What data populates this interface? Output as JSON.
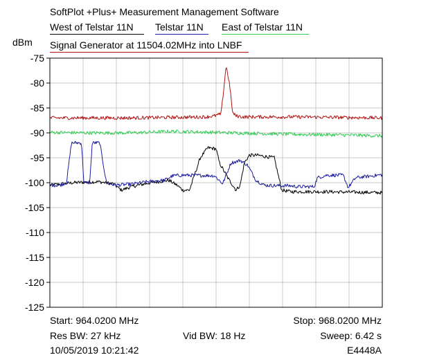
{
  "header": {
    "title": "SoftPlot +Plus+ Measurement Management Software"
  },
  "legend": [
    {
      "label": "West of Telstar 11N",
      "color": "#000000"
    },
    {
      "label": "Telstar 11N",
      "color": "#1a1aa0"
    },
    {
      "label": "East of Telstar 11N",
      "color": "#33cc55"
    },
    {
      "label": "Signal Generator at 11504.02MHz into LNBF",
      "color": "#b01010"
    }
  ],
  "footer": {
    "start": "Start: 964.0200 MHz",
    "stop": "Stop: 968.0200 MHz",
    "res_bw": "Res BW: 27 kHz",
    "vid_bw": "Vid BW: 18 Hz",
    "sweep": "Sweep: 6.42 s",
    "timestamp": "10/05/2019 10:21:42",
    "instrument": "E4448A"
  },
  "chart_data": {
    "type": "line",
    "ylabel": "dBm",
    "x_unit": "MHz",
    "xlim": [
      964.02,
      968.02
    ],
    "ylim": [
      -125,
      -75
    ],
    "yticks": [
      -75,
      -80,
      -85,
      -90,
      -95,
      -100,
      -105,
      -110,
      -115,
      -120,
      -125
    ],
    "x_divisions": 10,
    "grid": true,
    "series": [
      {
        "name": "West of Telstar 11N",
        "color": "#000000",
        "x": [
          964.02,
          964.3,
          964.6,
          964.78,
          964.88,
          965.0,
          965.2,
          965.45,
          965.55,
          965.62,
          965.7,
          965.83,
          965.92,
          966.02,
          966.06,
          966.16,
          966.26,
          966.31,
          966.36,
          966.42,
          966.52,
          966.72,
          966.81,
          966.92,
          967.3,
          968.02
        ],
        "y": [
          -100.5,
          -100.0,
          -99.8,
          -100.2,
          -101.5,
          -100.8,
          -100.1,
          -99.5,
          -100.5,
          -101.5,
          -101.5,
          -95.0,
          -93.0,
          -93.2,
          -96.0,
          -99.0,
          -101.5,
          -100.5,
          -96.0,
          -94.5,
          -94.5,
          -95.0,
          -101.5,
          -101.8,
          -101.8,
          -102.0
        ]
      },
      {
        "name": "Telstar 11N",
        "color": "#1a1aa0",
        "x": [
          964.02,
          964.14,
          964.22,
          964.28,
          964.4,
          964.43,
          964.5,
          964.53,
          964.62,
          964.7,
          964.8,
          965.0,
          965.2,
          965.4,
          965.5,
          965.62,
          965.7,
          966.0,
          966.1,
          966.2,
          966.26,
          966.31,
          966.4,
          966.5,
          966.6,
          966.75,
          966.9,
          967.0,
          967.1,
          967.2,
          967.24,
          967.35,
          967.55,
          967.61,
          967.7,
          968.02
        ],
        "y": [
          -100.5,
          -100.5,
          -100.0,
          -92.0,
          -92.0,
          -100.0,
          -100.0,
          -92.0,
          -92.0,
          -100.0,
          -100.5,
          -100.3,
          -99.8,
          -99.5,
          -98.6,
          -98.5,
          -98.5,
          -98.6,
          -100.2,
          -96.0,
          -95.8,
          -95.5,
          -96.5,
          -99.5,
          -100.5,
          -100.6,
          -100.6,
          -100.8,
          -100.8,
          -100.8,
          -99.0,
          -98.5,
          -98.5,
          -101.0,
          -99.0,
          -98.4
        ]
      },
      {
        "name": "East of Telstar 11N",
        "color": "#33cc55",
        "x": [
          964.02,
          964.5,
          965.0,
          965.5,
          966.0,
          966.5,
          967.0,
          967.5,
          968.02
        ],
        "y": [
          -89.9,
          -90.0,
          -90.0,
          -89.7,
          -89.9,
          -90.1,
          -90.3,
          -90.4,
          -90.6
        ]
      },
      {
        "name": "Signal Generator at 11504.02MHz into LNBF",
        "color": "#b01010",
        "x": [
          964.02,
          965.0,
          965.9,
          966.0,
          966.08,
          966.12,
          966.14,
          966.18,
          966.22,
          966.26,
          966.34,
          967.0,
          968.02
        ],
        "y": [
          -87.0,
          -87.0,
          -86.8,
          -86.6,
          -86.2,
          -80.0,
          -76.5,
          -80.0,
          -86.0,
          -86.6,
          -86.8,
          -86.8,
          -87.0
        ]
      }
    ]
  }
}
